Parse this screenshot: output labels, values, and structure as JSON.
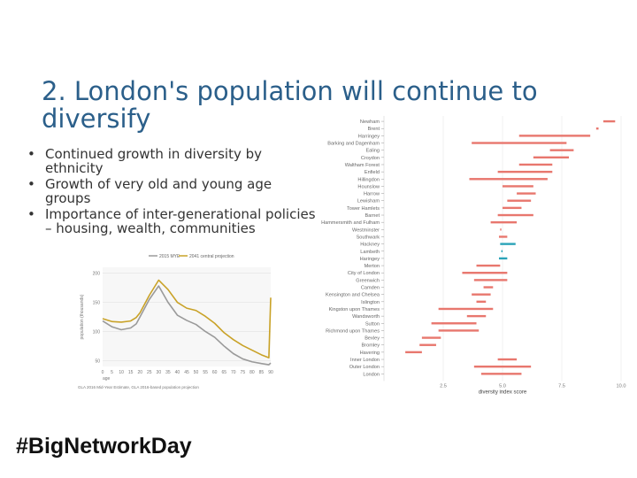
{
  "slide": {
    "title": "2. London's population will continue to diversify",
    "bullets": [
      "Continued growth in diversity by ethnicity",
      "Growth of very old and young age groups",
      "Importance of inter-generational policies – housing, wealth, communities"
    ],
    "hashtag": "#BigNetworkDay"
  },
  "chart_data": [
    {
      "type": "line",
      "title": "",
      "xlabel": "age",
      "ylabel": "population (thousands)",
      "source": "GLA 2016 Mid-Year Estimate, GLA 2016-based population projection",
      "x_ticks": [
        0,
        5,
        10,
        15,
        20,
        25,
        30,
        35,
        40,
        45,
        50,
        55,
        60,
        65,
        70,
        75,
        80,
        85,
        90
      ],
      "y_ticks": [
        50,
        100,
        150,
        200
      ],
      "ylim": [
        40,
        210
      ],
      "xlim": [
        0,
        90
      ],
      "colors": {
        "2015 MYE": "#9a9a9a",
        "2041 central projection": "#c9a227"
      },
      "series": [
        {
          "name": "2015 MYE",
          "x": [
            0,
            5,
            10,
            15,
            18,
            20,
            25,
            30,
            35,
            40,
            45,
            50,
            55,
            60,
            65,
            70,
            75,
            80,
            85,
            89,
            90
          ],
          "values": [
            118,
            108,
            103,
            106,
            113,
            125,
            155,
            178,
            150,
            128,
            119,
            112,
            100,
            90,
            75,
            62,
            53,
            48,
            45,
            43,
            46
          ]
        },
        {
          "name": "2041 central projection",
          "x": [
            0,
            5,
            10,
            15,
            18,
            20,
            25,
            30,
            35,
            40,
            45,
            50,
            55,
            60,
            65,
            70,
            75,
            80,
            85,
            89,
            90
          ],
          "values": [
            122,
            117,
            116,
            118,
            124,
            132,
            162,
            188,
            172,
            150,
            140,
            136,
            126,
            114,
            98,
            86,
            76,
            68,
            60,
            55,
            158
          ]
        }
      ]
    },
    {
      "type": "range",
      "xlabel": "diversity index score",
      "x_ticks": [
        "2.5",
        "5.0",
        "7.5",
        "10.0"
      ],
      "xlim": [
        0,
        10
      ],
      "colors": {
        "increase": "#e8776e",
        "decrease": "#2aa3b8"
      },
      "rows": [
        {
          "borough": "Newham",
          "start": 9.25,
          "end": 9.75,
          "dir": "increase"
        },
        {
          "borough": "Brent",
          "start": 8.95,
          "end": 9.05,
          "dir": "increase"
        },
        {
          "borough": "Harringey",
          "start": 5.7,
          "end": 8.7,
          "dir": "increase"
        },
        {
          "borough": "Barking and Dagenham",
          "start": 3.7,
          "end": 7.7,
          "dir": "increase"
        },
        {
          "borough": "Ealing",
          "start": 7.0,
          "end": 8.0,
          "dir": "increase"
        },
        {
          "borough": "Croydon",
          "start": 6.3,
          "end": 7.8,
          "dir": "increase"
        },
        {
          "borough": "Waltham Forest",
          "start": 5.7,
          "end": 7.1,
          "dir": "increase"
        },
        {
          "borough": "Enfield",
          "start": 4.8,
          "end": 7.1,
          "dir": "increase"
        },
        {
          "borough": "Hillingdon",
          "start": 3.6,
          "end": 6.9,
          "dir": "increase"
        },
        {
          "borough": "Hounslow",
          "start": 5.0,
          "end": 6.3,
          "dir": "increase"
        },
        {
          "borough": "Harrow",
          "start": 5.6,
          "end": 6.4,
          "dir": "increase"
        },
        {
          "borough": "Lewisham",
          "start": 5.2,
          "end": 6.2,
          "dir": "increase"
        },
        {
          "borough": "Tower Hamlets",
          "start": 5.0,
          "end": 5.8,
          "dir": "increase"
        },
        {
          "borough": "Barnet",
          "start": 4.8,
          "end": 6.3,
          "dir": "increase"
        },
        {
          "borough": "Hammersmith and Fulham",
          "start": 4.5,
          "end": 5.6,
          "dir": "increase"
        },
        {
          "borough": "Westminster",
          "start": 4.9,
          "end": 4.95,
          "dir": "increase"
        },
        {
          "borough": "Southwark",
          "start": 4.85,
          "end": 5.2,
          "dir": "increase"
        },
        {
          "borough": "Hackney",
          "start": 4.9,
          "end": 5.55,
          "dir": "decrease"
        },
        {
          "borough": "Lambeth",
          "start": 4.95,
          "end": 5.0,
          "dir": "decrease"
        },
        {
          "borough": "Haringey",
          "start": 4.85,
          "end": 5.2,
          "dir": "decrease"
        },
        {
          "borough": "Merton",
          "start": 3.9,
          "end": 4.9,
          "dir": "increase"
        },
        {
          "borough": "City of London",
          "start": 3.3,
          "end": 5.2,
          "dir": "increase"
        },
        {
          "borough": "Greenwich",
          "start": 3.8,
          "end": 5.2,
          "dir": "increase"
        },
        {
          "borough": "Camden",
          "start": 4.2,
          "end": 4.6,
          "dir": "increase"
        },
        {
          "borough": "Kensington and Chelsea",
          "start": 3.7,
          "end": 4.5,
          "dir": "increase"
        },
        {
          "borough": "Islington",
          "start": 3.9,
          "end": 4.3,
          "dir": "increase"
        },
        {
          "borough": "Kingston upon Thames",
          "start": 2.3,
          "end": 4.6,
          "dir": "increase"
        },
        {
          "borough": "Wandsworth",
          "start": 3.5,
          "end": 4.3,
          "dir": "increase"
        },
        {
          "borough": "Sutton",
          "start": 2.0,
          "end": 3.9,
          "dir": "increase"
        },
        {
          "borough": "Richmond upon Thames",
          "start": 2.3,
          "end": 4.0,
          "dir": "increase"
        },
        {
          "borough": "Bexley",
          "start": 1.6,
          "end": 2.4,
          "dir": "increase"
        },
        {
          "borough": "Bromley",
          "start": 1.5,
          "end": 2.2,
          "dir": "increase"
        },
        {
          "borough": "Havering",
          "start": 0.9,
          "end": 1.6,
          "dir": "increase"
        },
        {
          "borough": "Inner London",
          "start": 4.8,
          "end": 5.6,
          "dir": "increase"
        },
        {
          "borough": "Outer London",
          "start": 3.8,
          "end": 6.2,
          "dir": "increase"
        },
        {
          "borough": "London",
          "start": 4.1,
          "end": 5.8,
          "dir": "increase"
        }
      ]
    }
  ]
}
